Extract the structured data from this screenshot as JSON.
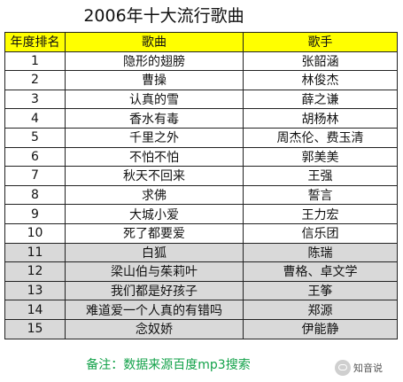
{
  "title": "2006年十大流行歌曲",
  "headers": [
    "年度排名",
    "歌曲",
    "歌手"
  ],
  "rows": [
    {
      "rank": "1",
      "song": "隐形的翅膀",
      "singer": "张韶涵",
      "highlight": false
    },
    {
      "rank": "2",
      "song": "曹操",
      "singer": "林俊杰",
      "highlight": false
    },
    {
      "rank": "3",
      "song": "认真的雪",
      "singer": "薛之谦",
      "highlight": false
    },
    {
      "rank": "4",
      "song": "香水有毒",
      "singer": "胡杨林",
      "highlight": false
    },
    {
      "rank": "5",
      "song": "千里之外",
      "singer": "周杰伦、费玉清",
      "highlight": false
    },
    {
      "rank": "6",
      "song": "不怕不怕",
      "singer": "郭美美",
      "highlight": false
    },
    {
      "rank": "7",
      "song": "秋天不回来",
      "singer": "王强",
      "highlight": false
    },
    {
      "rank": "8",
      "song": "求佛",
      "singer": "誓言",
      "highlight": false
    },
    {
      "rank": "9",
      "song": "大城小爱",
      "singer": "王力宏",
      "highlight": false
    },
    {
      "rank": "10",
      "song": "死了都要爱",
      "singer": "信乐团",
      "highlight": false
    },
    {
      "rank": "11",
      "song": "白狐",
      "singer": "陈瑞",
      "highlight": true
    },
    {
      "rank": "12",
      "song": "梁山伯与茱莉叶",
      "singer": "曹格、卓文学",
      "highlight": true
    },
    {
      "rank": "13",
      "song": "我们都是好孩子",
      "singer": "王筝",
      "highlight": true
    },
    {
      "rank": "14",
      "song": "难道爱一个人真的有错吗",
      "singer": "郑源",
      "highlight": true
    },
    {
      "rank": "15",
      "song": "念奴娇",
      "singer": "伊能静",
      "highlight": true
    }
  ],
  "footer": "备注：数据来源百度mp3搜索",
  "watermark": {
    "text": "知音说",
    "icon": "chat-bubble-icon"
  },
  "colors": {
    "header_bg": "#ffff00",
    "grey_row_bg": "#d9d9d9",
    "footer_text": "#13a24a"
  }
}
